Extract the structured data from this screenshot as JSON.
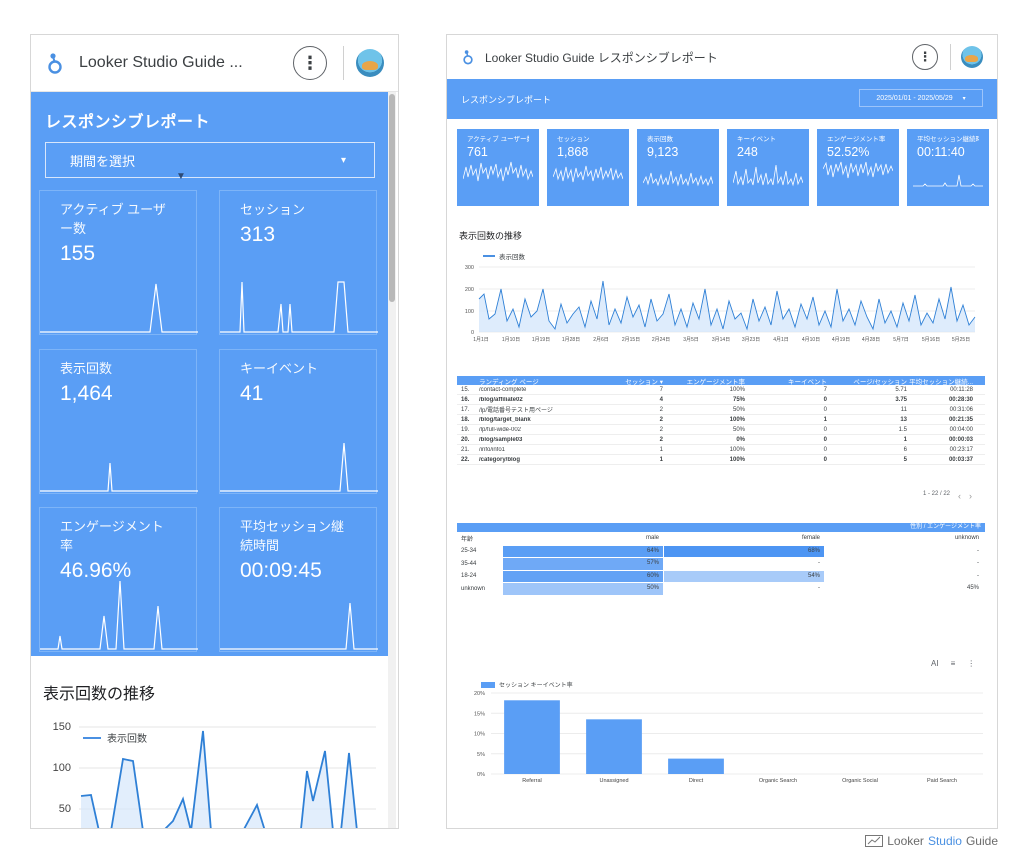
{
  "app": {
    "title_short": "Looker Studio Guide ...",
    "title_full": "Looker Studio Guide レスポンシブレポート"
  },
  "mobile": {
    "report_title": "レスポンシブレポート",
    "period_placeholder": "期間を選択",
    "period_arrow": "▾",
    "scorecards": [
      {
        "label": "アクティブ ユーザー数",
        "value": "155"
      },
      {
        "label": "セッション",
        "value": "313"
      },
      {
        "label": "表示回数",
        "value": "1,464"
      },
      {
        "label": "キーイベント",
        "value": "41"
      },
      {
        "label": "エンゲージメント率",
        "value": "46.96%"
      },
      {
        "label": "平均セッション継続時間",
        "value": "00:09:45"
      }
    ],
    "section_title": "表示回数の推移",
    "legend": "表示回数",
    "y_ticks": [
      "150",
      "100",
      "50"
    ]
  },
  "desktop": {
    "report_title": "レスポンシブレポート",
    "date_range": "2025/01/01 - 2025/05/29",
    "date_arrow": "▾",
    "scorecards": [
      {
        "label": "アクティブ ユーザー数",
        "value": "761"
      },
      {
        "label": "セッション",
        "value": "1,868"
      },
      {
        "label": "表示回数",
        "value": "9,123"
      },
      {
        "label": "キーイベント",
        "value": "248"
      },
      {
        "label": "エンゲージメント率",
        "value": "52.52%"
      },
      {
        "label": "平均セッション継続時間",
        "value": "00:11:40"
      }
    ],
    "section_title": "表示回数の推移",
    "legend": "表示回数",
    "line_y_ticks": [
      "300",
      "200",
      "100",
      "0"
    ],
    "line_x_ticks": [
      "1月1日",
      "1月10日",
      "1月19日",
      "1月28日",
      "2月6日",
      "2月15日",
      "2月24日",
      "3月5日",
      "3月14日",
      "3月23日",
      "4月1日",
      "4月10日",
      "4月19日",
      "4月28日",
      "5月7日",
      "5月16日",
      "5月25日"
    ],
    "table": {
      "headers": [
        "",
        "ランディング ページ",
        "セッション ▾",
        "エンゲージメント率",
        "キーイベント",
        "ページ/セッション",
        "平均セッション継続..."
      ],
      "rows": [
        {
          "n": "15.",
          "page": "/contact-complete",
          "sessions": "7",
          "eng": "100%",
          "key": "7",
          "pps": "5.71",
          "dur": "00:11:28",
          "bold": false
        },
        {
          "n": "16.",
          "page": "/blog/affiliate02",
          "sessions": "4",
          "eng": "75%",
          "key": "0",
          "pps": "3.75",
          "dur": "00:28:30",
          "bold": true
        },
        {
          "n": "17.",
          "page": "/lp/電話番号テスト用ページ",
          "sessions": "2",
          "eng": "50%",
          "key": "0",
          "pps": "11",
          "dur": "00:31:06",
          "bold": false
        },
        {
          "n": "18.",
          "page": "/blog/target_blank",
          "sessions": "2",
          "eng": "100%",
          "key": "1",
          "pps": "13",
          "dur": "00:21:35",
          "bold": true
        },
        {
          "n": "19.",
          "page": "/lp/full-wide-002",
          "sessions": "2",
          "eng": "50%",
          "key": "0",
          "pps": "1.5",
          "dur": "00:04:00",
          "bold": false
        },
        {
          "n": "20.",
          "page": "/blog/sample03",
          "sessions": "2",
          "eng": "0%",
          "key": "0",
          "pps": "1",
          "dur": "00:00:03",
          "bold": true
        },
        {
          "n": "21.",
          "page": "/info/info1",
          "sessions": "1",
          "eng": "100%",
          "key": "0",
          "pps": "6",
          "dur": "00:23:17",
          "bold": false
        },
        {
          "n": "22.",
          "page": "/category/blog",
          "sessions": "1",
          "eng": "100%",
          "key": "0",
          "pps": "5",
          "dur": "00:03:37",
          "bold": true
        }
      ],
      "pager": "1 - 22 / 22",
      "prev": "‹",
      "next": "›"
    },
    "heatmap": {
      "title": "性別 / エンゲージメント率",
      "headers": [
        "年齢",
        "male",
        "female",
        "unknown"
      ],
      "rows": [
        {
          "age": "25-34",
          "male": "64%",
          "female": "68%",
          "unknown": "-"
        },
        {
          "age": "35-44",
          "male": "57%",
          "female": "-",
          "unknown": "-"
        },
        {
          "age": "18-24",
          "male": "60%",
          "female": "54%",
          "unknown": "-"
        },
        {
          "age": "unknown",
          "male": "50%",
          "female": "-",
          "unknown": "45%"
        }
      ]
    },
    "toolbar": {
      "ai": "AI",
      "filter": "≡",
      "more": "⋮"
    },
    "bar_legend": "セッション キーイベント率",
    "chart_data": {
      "type": "bar",
      "categories": [
        "Referral",
        "Unassigned",
        "Direct",
        "Organic Search",
        "Organic Social",
        "Paid Search"
      ],
      "values": [
        18.2,
        13.5,
        3.8,
        0,
        0,
        0
      ],
      "ylim": [
        0,
        20
      ],
      "y_ticks": [
        "20%",
        "15%",
        "10%",
        "5%",
        "0%"
      ],
      "series": [
        {
          "name": "セッション キーイベント率",
          "values": [
            18.2,
            13.5,
            3.8,
            0,
            0,
            0
          ]
        }
      ]
    }
  },
  "brand": {
    "prefix": "Looker ",
    "studio": "Studio",
    "suffix": " Guide"
  },
  "colors": {
    "accent": "#5a9ef5",
    "line": "#4a90e2"
  }
}
